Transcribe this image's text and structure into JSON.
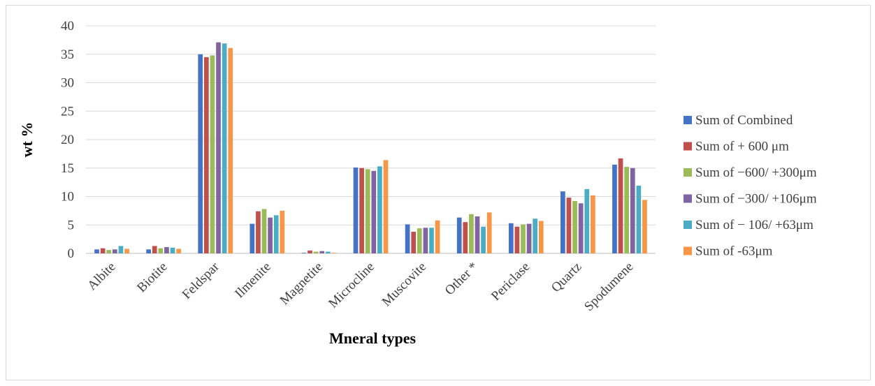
{
  "chart_data": {
    "type": "bar",
    "title": "",
    "xlabel": "Mneral types",
    "ylabel": "wt %",
    "ylim": [
      0,
      40
    ],
    "yticks": [
      "0",
      "5",
      "10",
      "15",
      "20",
      "25",
      "30",
      "35",
      "40"
    ],
    "grid": true,
    "legend_position": "right",
    "categories": [
      "Albite",
      "Biotite",
      "Feldspar",
      "Ilmenite",
      "Magnetite",
      "Microcline",
      "Muscovite",
      "Other *",
      "Periclase",
      "Quartz",
      "Spodumene"
    ],
    "series": [
      {
        "name": "Sum of Combined",
        "color": "#4472c4",
        "values": [
          0.7,
          0.7,
          35.0,
          5.2,
          0.1,
          15.1,
          5.1,
          6.3,
          5.3,
          10.9,
          15.6
        ]
      },
      {
        "name": "Sum of + 600 μm",
        "color": "#c0504d",
        "values": [
          0.9,
          1.3,
          34.5,
          7.4,
          0.5,
          15.0,
          3.8,
          5.5,
          4.7,
          9.8,
          16.7
        ]
      },
      {
        "name": "Sum of −600/ +300μm",
        "color": "#9bbb59",
        "values": [
          0.6,
          0.9,
          34.8,
          7.8,
          0.3,
          14.8,
          4.4,
          6.9,
          5.1,
          9.2,
          15.2
        ]
      },
      {
        "name": "Sum of −300/ +106μm",
        "color": "#8064a2",
        "values": [
          0.7,
          1.1,
          37.1,
          6.3,
          0.4,
          14.5,
          4.5,
          6.5,
          5.2,
          8.8,
          15.0
        ]
      },
      {
        "name": "Sum of − 106/ +63μm",
        "color": "#4bacc6",
        "values": [
          1.3,
          1.0,
          36.9,
          6.7,
          0.3,
          15.3,
          4.5,
          4.7,
          6.1,
          11.3,
          11.9
        ]
      },
      {
        "name": "Sum of -63μm",
        "color": "#f79646",
        "values": [
          0.8,
          0.8,
          36.1,
          7.5,
          0.1,
          16.4,
          5.8,
          7.2,
          5.7,
          10.2,
          9.4
        ]
      }
    ]
  }
}
